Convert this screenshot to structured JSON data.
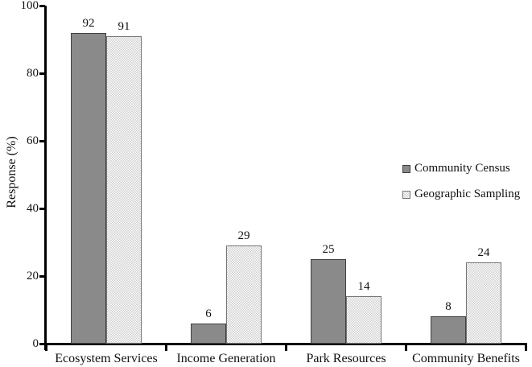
{
  "chart_data": {
    "type": "bar",
    "title": "",
    "xlabel": "",
    "ylabel": "Response (%)",
    "ylim": [
      0,
      100
    ],
    "yticks": [
      0,
      20,
      40,
      60,
      80,
      100
    ],
    "grid": false,
    "legend_position": "middle-right",
    "bar_value_labels": true,
    "categories": [
      "Ecosystem Services",
      "Income Generation",
      "Park Resources",
      "Community Benefits"
    ],
    "series": [
      {
        "name": "Community Census",
        "values": [
          92,
          6,
          25,
          8
        ],
        "pattern": "solid",
        "fill": "#8a8a8a",
        "border": "#3f3f3f"
      },
      {
        "name": "Geographic Sampling",
        "values": [
          91,
          29,
          14,
          24
        ],
        "pattern": "dotted",
        "fill": "#cdcdcd",
        "border": "#757575"
      }
    ],
    "axis_color": "#000000",
    "text_color": "#111111",
    "background": "#ffffff"
  }
}
